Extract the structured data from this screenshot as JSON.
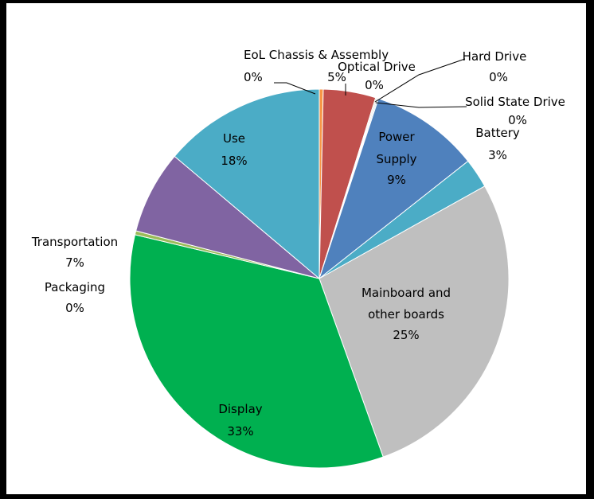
{
  "chart_data": {
    "type": "pie",
    "slices": [
      {
        "label": "EoL Chassis & Assembly",
        "value": 0,
        "pct_label": "0%",
        "color": "#f79646"
      },
      {
        "label": "",
        "value": 5,
        "pct_label": "5%",
        "color": "#c0504d"
      },
      {
        "label": "Optical Drive",
        "value": 0,
        "pct_label": "0%",
        "color": "#9bbb59"
      },
      {
        "label": "Hard Drive",
        "value": 0,
        "pct_label": "0%",
        "color": "#8064a2"
      },
      {
        "label": "Solid State Drive",
        "value": 0,
        "pct_label": "0%",
        "color": "#4bacc6"
      },
      {
        "label": "Power Supply",
        "value": 9,
        "pct_label": "9%",
        "color": "#4f81bd"
      },
      {
        "label": "Battery",
        "value": 3,
        "pct_label": "3%",
        "color": "#4bacc6"
      },
      {
        "label": "Mainboard and other boards",
        "value": 25,
        "pct_label": "25%",
        "color": "#bfbfbf"
      },
      {
        "label": "Display",
        "value": 33,
        "pct_label": "33%",
        "color": "#00b050"
      },
      {
        "label": "Packaging",
        "value": 0,
        "pct_label": "0%",
        "color": "#9bbb59"
      },
      {
        "label": "Transportation",
        "value": 7,
        "pct_label": "7%",
        "color": "#8064a2"
      },
      {
        "label": "Use",
        "value": 18,
        "pct_label": "18%",
        "color": "#4bacc6"
      }
    ]
  }
}
